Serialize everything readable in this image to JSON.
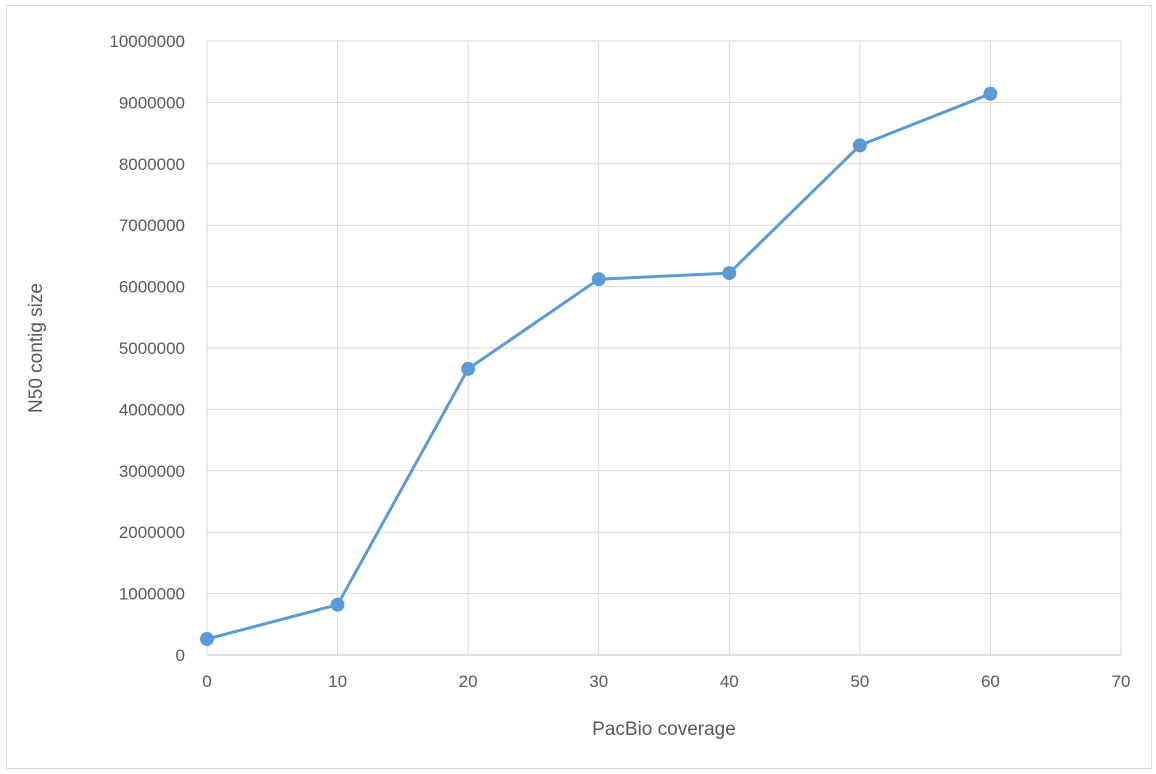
{
  "chart_data": {
    "type": "scatter",
    "title": "",
    "xlabel": "PacBio coverage",
    "ylabel": "N50 contig size",
    "xlim": [
      0,
      70
    ],
    "ylim": [
      0,
      10000000
    ],
    "x_ticks": [
      0,
      10,
      20,
      30,
      40,
      50,
      60,
      70
    ],
    "y_ticks": [
      0,
      1000000,
      2000000,
      3000000,
      4000000,
      5000000,
      6000000,
      7000000,
      8000000,
      9000000,
      10000000
    ],
    "grid": true,
    "legend": "none",
    "series": [
      {
        "x": [
          0,
          10,
          20,
          30,
          40,
          50,
          60
        ],
        "y": [
          260000,
          820000,
          4660000,
          6120000,
          6220000,
          8300000,
          9140000
        ],
        "color": "#5b9bd5",
        "lines": true,
        "markers": true
      }
    ]
  }
}
